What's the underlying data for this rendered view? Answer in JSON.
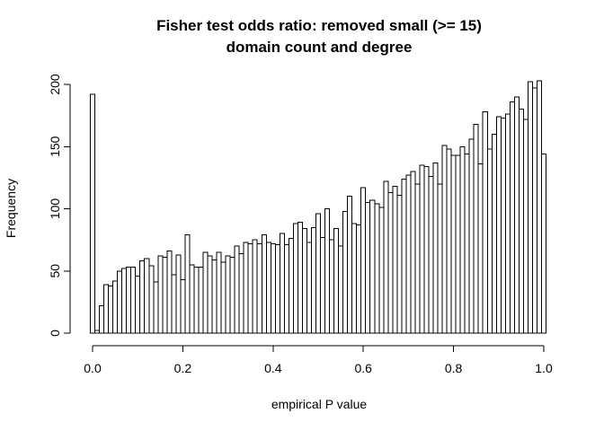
{
  "chart_data": {
    "type": "bar",
    "title": [
      "Fisher test odds ratio: removed small (>= 15)",
      "domain count and degree"
    ],
    "xlabel": "empirical P value",
    "ylabel": "Frequency",
    "xlim": [
      0,
      1
    ],
    "ylim": [
      0,
      200
    ],
    "bin_width": 0.01,
    "x_ticks": [
      0.0,
      0.2,
      0.4,
      0.6,
      0.8,
      1.0
    ],
    "x_tick_labels": [
      "0.0",
      "0.2",
      "0.4",
      "0.6",
      "0.8",
      "1.0"
    ],
    "y_ticks": [
      0,
      50,
      100,
      150,
      200
    ],
    "y_tick_labels": [
      "0",
      "50",
      "100",
      "150",
      "200"
    ],
    "grid": false,
    "legend": "none",
    "values": [
      192,
      2,
      22,
      39,
      38,
      42,
      50,
      52,
      53,
      53,
      46,
      58,
      60,
      54,
      41,
      62,
      61,
      66,
      47,
      63,
      43,
      79,
      55,
      53,
      53,
      65,
      62,
      59,
      65,
      57,
      62,
      61,
      70,
      64,
      73,
      72,
      75,
      72,
      79,
      73,
      72,
      71,
      80,
      71,
      76,
      88,
      89,
      84,
      73,
      85,
      96,
      77,
      100,
      75,
      84,
      70,
      98,
      110,
      88,
      87,
      117,
      105,
      107,
      104,
      101,
      122,
      113,
      118,
      111,
      124,
      127,
      130,
      120,
      135,
      134,
      126,
      137,
      120,
      151,
      148,
      143,
      143,
      150,
      144,
      156,
      168,
      136,
      178,
      148,
      160,
      174,
      173,
      176,
      186,
      190,
      180,
      172,
      202,
      197,
      203,
      144
    ]
  },
  "colors": {
    "bar_fill": "#ffffff",
    "bar_stroke": "#000000",
    "text": "#000000"
  }
}
